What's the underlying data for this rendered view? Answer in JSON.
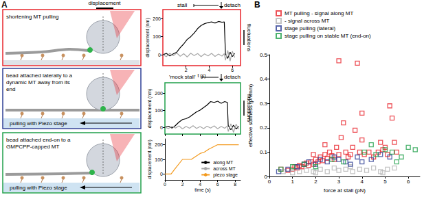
{
  "panel_labels": [
    "A",
    "B"
  ],
  "displacement_label": "displacement",
  "diagrams": [
    {
      "color": "#e8262d",
      "texts": [
        "shortening MT pulling"
      ]
    },
    {
      "color": "#2e3f95",
      "texts": [
        "bead attached laterally to a dynamic MT away from its end",
        "pulling with Piezo stage"
      ]
    },
    {
      "color": "#21a04b",
      "texts": [
        "bead attached end-on to a GMPCPP-capped MT",
        "pulling with Piezo stage"
      ]
    }
  ],
  "chart_data": [
    {
      "type": "line",
      "xlabel": "t (s)",
      "ylabel": "displacement (nm)",
      "xlim": [
        0,
        6.7
      ],
      "xticks": [
        2,
        4,
        6
      ],
      "ylim": [
        -60,
        250
      ],
      "yticks": [
        0,
        100,
        200
      ],
      "annotations": [
        "stall",
        "detach",
        "fluctuations"
      ],
      "series": [
        {
          "name": "along MT",
          "color": "#000000",
          "x": [
            0,
            0.3,
            0.6,
            0.9,
            1.2,
            1.5,
            1.8,
            2.1,
            2.4,
            2.7,
            3.0,
            3.3,
            3.6,
            3.9,
            4.2,
            4.5,
            4.8,
            5.1,
            5.3,
            5.4,
            5.6,
            5.8,
            6.0,
            6.2
          ],
          "values": [
            0,
            8,
            -6,
            5,
            15,
            40,
            60,
            85,
            100,
            120,
            145,
            162,
            172,
            178,
            182,
            176,
            184,
            180,
            182,
            5,
            -20,
            15,
            -10,
            8
          ]
        },
        {
          "name": "across MT",
          "color": "#a6a6a6",
          "x": [
            0,
            0.3,
            0.6,
            0.9,
            1.2,
            1.5,
            1.8,
            2.1,
            2.4,
            2.7,
            3.0,
            3.3,
            3.6,
            3.9,
            4.2,
            4.5,
            4.8,
            5.1,
            5.3,
            5.4,
            5.6,
            5.8,
            6.0,
            6.2
          ],
          "values": [
            0,
            -10,
            8,
            -5,
            10,
            -8,
            6,
            -12,
            9,
            -4,
            7,
            -10,
            5,
            -6,
            8,
            -9,
            4,
            -7,
            6,
            -30,
            25,
            -35,
            20,
            -15
          ]
        }
      ]
    },
    {
      "type": "line",
      "xlabel": "time (s)",
      "ylabel": "displacement (nm)",
      "y2label": "displacement (nm)",
      "xlim": [
        0,
        8.6
      ],
      "xticks": [
        0,
        2,
        4,
        6,
        8
      ],
      "ylim": [
        -40,
        260
      ],
      "yticks": [
        0,
        100,
        200
      ],
      "y2lim": [
        -40,
        240
      ],
      "y2ticks": [
        0,
        100,
        200
      ],
      "legend": "lower right",
      "annotations": [
        "'mock stall'",
        "detach",
        "fluctuations"
      ],
      "series": [
        {
          "name": "along MT",
          "color": "#000000",
          "x": [
            0,
            0.4,
            0.8,
            1.2,
            1.6,
            2.0,
            2.4,
            2.8,
            3.2,
            3.6,
            4.0,
            4.4,
            4.8,
            5.2,
            5.6,
            6.0,
            6.4,
            6.8,
            7.1,
            7.2,
            7.5,
            7.8,
            8.1,
            8.4
          ],
          "values": [
            0,
            6,
            -5,
            10,
            30,
            45,
            50,
            60,
            75,
            90,
            100,
            115,
            130,
            150,
            145,
            152,
            140,
            150,
            145,
            10,
            -15,
            12,
            -10,
            5
          ]
        },
        {
          "name": "across MT",
          "color": "#a6a6a6",
          "x": [
            0,
            0.4,
            0.8,
            1.2,
            1.6,
            2.0,
            2.4,
            2.8,
            3.2,
            3.6,
            4.0,
            4.4,
            4.8,
            5.2,
            5.6,
            6.0,
            6.4,
            6.8,
            7.1,
            7.2,
            7.5,
            7.8,
            8.1,
            8.4
          ],
          "values": [
            0,
            -8,
            6,
            -5,
            8,
            -10,
            5,
            -6,
            9,
            -7,
            4,
            -8,
            6,
            -5,
            8,
            -9,
            5,
            -6,
            7,
            -25,
            20,
            -30,
            18,
            -12
          ]
        },
        {
          "name": "piezo stage",
          "color": "#f39a1e",
          "axis": "y2",
          "x": [
            0,
            0.7,
            1.2,
            2.0,
            3.0,
            3.5,
            4.0,
            4.5,
            5.0,
            5.5,
            6.0,
            7.0,
            8.0,
            8.4
          ],
          "values": [
            0,
            0,
            40,
            100,
            100,
            120,
            140,
            150,
            170,
            185,
            200,
            200,
            200,
            200
          ]
        }
      ]
    },
    {
      "type": "scatter",
      "xlabel": "force at stall (pN)",
      "ylabel": "effective stiffness (pN/nm)",
      "xlim": [
        0,
        6.5
      ],
      "xticks": [
        0,
        1,
        2,
        3,
        4,
        5,
        6
      ],
      "ylim": [
        0,
        0.5
      ],
      "yticks": [
        0,
        0.1,
        0.2,
        0.3,
        0.4,
        0.5
      ],
      "legend": "upper left",
      "marker": "square",
      "series": [
        {
          "name": "MT pulling - signal along MT",
          "color": "#e8262d",
          "x": [
            0.5,
            0.8,
            1.0,
            1.1,
            1.2,
            1.3,
            1.4,
            1.5,
            1.6,
            1.7,
            1.8,
            1.9,
            2.0,
            2.1,
            2.2,
            2.3,
            2.4,
            2.5,
            2.6,
            2.7,
            2.8,
            2.9,
            3.0,
            3.0,
            3.1,
            3.2,
            3.3,
            3.4,
            3.5,
            3.6,
            3.7,
            3.8,
            3.9,
            4.0,
            4.0,
            4.1,
            4.3,
            4.5,
            4.7,
            4.8,
            4.9,
            5.0,
            5.1,
            5.2,
            5.3,
            5.4,
            5.5,
            2.4,
            1.9
          ],
          "values": [
            0.03,
            0.025,
            0.03,
            0.04,
            0.035,
            0.045,
            0.04,
            0.05,
            0.055,
            0.045,
            0.06,
            0.05,
            0.07,
            0.06,
            0.08,
            0.065,
            0.09,
            0.075,
            0.1,
            0.085,
            0.07,
            0.12,
            0.475,
            0.09,
            0.16,
            0.22,
            0.1,
            0.08,
            0.09,
            0.12,
            0.19,
            0.465,
            0.1,
            0.15,
            0.26,
            0.09,
            0.1,
            0.08,
            0.1,
            0.14,
            0.11,
            0.12,
            0.09,
            0.29,
            0.24,
            0.14,
            0.1,
            0.13,
            0.09
          ]
        },
        {
          "name": "- signal across MT",
          "color": "#b4b4b4",
          "x": [
            0.6,
            1.0,
            1.3,
            1.6,
            1.9,
            2.2,
            2.5,
            2.8,
            3.0,
            3.3,
            3.6,
            3.9,
            4.2,
            4.5,
            4.8,
            5.1,
            5.4,
            2.0,
            3.5,
            4.9
          ],
          "values": [
            0.02,
            0.015,
            0.02,
            0.025,
            0.02,
            0.03,
            0.02,
            0.035,
            0.025,
            0.03,
            0.02,
            0.03,
            0.025,
            0.035,
            0.02,
            0.03,
            0.035,
            0.015,
            0.04,
            0.015
          ]
        },
        {
          "name": "stage pulling (lateral)",
          "color": "#2e3f95",
          "x": [
            0.4,
            0.8,
            1.2,
            1.5,
            1.7,
            2.0,
            2.2,
            2.5,
            2.8,
            3.0,
            3.3,
            3.5,
            3.8,
            4.0,
            4.4,
            4.8,
            5.2
          ],
          "values": [
            0.02,
            0.03,
            0.04,
            0.05,
            0.06,
            0.05,
            0.07,
            0.06,
            0.08,
            0.07,
            0.06,
            0.05,
            0.08,
            0.06,
            0.07,
            0.09,
            0.08
          ]
        },
        {
          "name": "stage pulling on stable MT (end-on)",
          "color": "#21a04b",
          "x": [
            0.5,
            1.0,
            1.5,
            2.0,
            2.7,
            3.2,
            4.1,
            4.6,
            5.0,
            5.3,
            5.7,
            6.0,
            6.3,
            4.4,
            5.5
          ],
          "values": [
            0.03,
            0.04,
            0.05,
            0.04,
            0.07,
            0.06,
            0.1,
            0.09,
            0.11,
            0.1,
            0.08,
            0.12,
            0.11,
            0.13,
            0.06
          ]
        }
      ]
    }
  ]
}
